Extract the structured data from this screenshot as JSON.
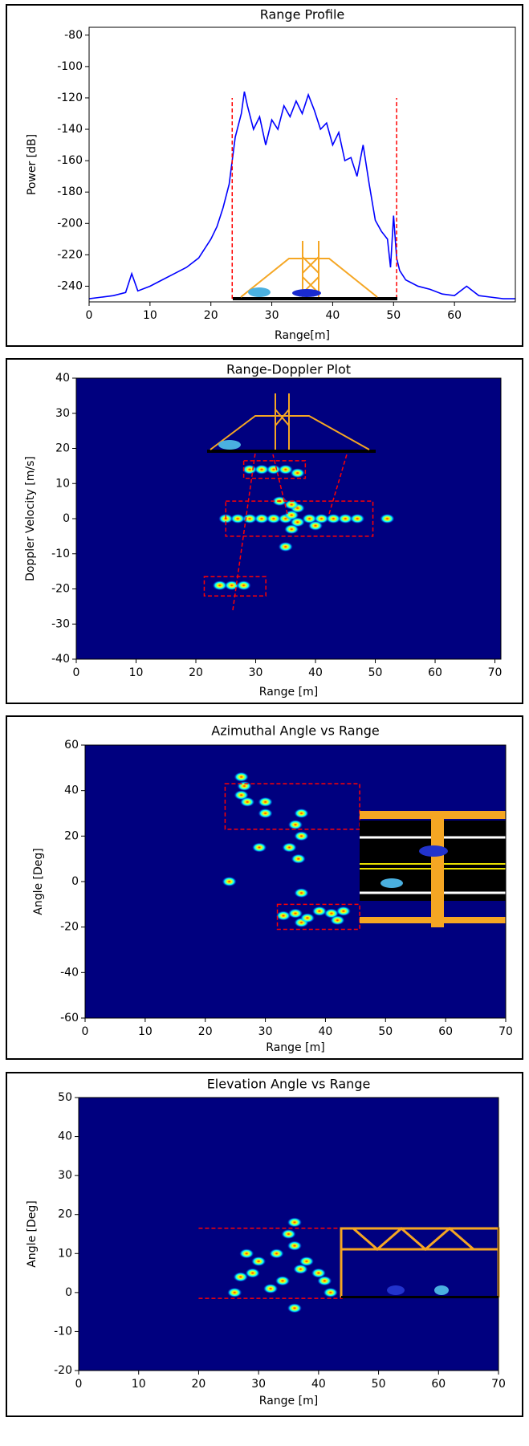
{
  "chart_data": [
    {
      "type": "line",
      "title": "Range Profile",
      "xlabel": "Range[m]",
      "ylabel": "Power [dB]",
      "color": "#0000ff",
      "x": [
        0,
        2,
        4,
        6,
        7,
        8,
        10,
        12,
        14,
        16,
        18,
        20,
        21,
        22,
        23,
        23.5,
        24,
        25,
        25.5,
        26,
        27,
        28,
        29,
        30,
        31,
        32,
        33,
        34,
        35,
        36,
        37,
        38,
        39,
        40,
        41,
        42,
        43,
        44,
        45,
        46,
        47,
        48,
        49,
        49.5,
        50,
        50.5,
        51,
        52,
        54,
        56,
        58,
        60,
        62,
        64,
        66,
        68,
        70
      ],
      "values": [
        -248,
        -247,
        -246,
        -244,
        -232,
        -243,
        -240,
        -236,
        -232,
        -228,
        -222,
        -210,
        -202,
        -190,
        -175,
        -160,
        -145,
        -130,
        -116,
        -125,
        -140,
        -132,
        -150,
        -134,
        -140,
        -125,
        -132,
        -122,
        -130,
        -118,
        -128,
        -140,
        -136,
        -150,
        -142,
        -160,
        -158,
        -170,
        -150,
        -175,
        -198,
        -205,
        -210,
        -228,
        -195,
        -222,
        -230,
        -236,
        -240,
        -242,
        -245,
        -246,
        -240,
        -246,
        -247,
        -248,
        -248
      ],
      "xlim": [
        0,
        70
      ],
      "ylim": [
        -250,
        -75
      ],
      "xticks": [
        0,
        10,
        20,
        30,
        40,
        50,
        60
      ],
      "yticks": [
        -240,
        -220,
        -200,
        -180,
        -160,
        -140,
        -120,
        -100,
        -80
      ],
      "vlines": [
        {
          "x": 23.5,
          "y": [
            -248,
            -120
          ]
        },
        {
          "x": 50.5,
          "y": [
            -248,
            -120
          ]
        }
      ],
      "marker_color": "#ff0000"
    },
    {
      "type": "heatmap",
      "title": "Range-Doppler Plot",
      "xlabel": "Range [m]",
      "ylabel": "Doppler Velocity [m/s]",
      "xlim": [
        0,
        71
      ],
      "ylim": [
        -40,
        40
      ],
      "xticks": [
        0,
        10,
        20,
        30,
        40,
        50,
        60,
        70
      ],
      "yticks": [
        -40,
        -30,
        -20,
        -10,
        0,
        10,
        20,
        30,
        40
      ],
      "points": {
        "x": [
          25,
          27,
          29,
          31,
          33,
          35,
          36,
          37,
          39,
          41,
          43,
          45,
          47,
          29,
          31,
          33,
          35,
          37,
          24,
          26,
          28,
          36,
          35,
          34,
          37,
          40,
          36,
          52
        ],
        "y": [
          0,
          0,
          0,
          0,
          0,
          0,
          1,
          -1,
          0,
          0,
          0,
          0,
          0,
          14,
          14,
          14,
          14,
          13,
          -19,
          -19,
          -19,
          -3,
          -8,
          5,
          3,
          -2,
          4,
          0
        ]
      },
      "boxes": [
        {
          "x": [
            28,
            38.3
          ],
          "y": [
            11.5,
            16.5
          ]
        },
        {
          "x": [
            25,
            49.6
          ],
          "y": [
            -5,
            5
          ]
        },
        {
          "x": [
            21.4,
            31.7
          ],
          "y": [
            -22,
            -16.5
          ]
        }
      ]
    },
    {
      "type": "heatmap",
      "title": "Azimuthal Angle vs Range",
      "xlabel": "Range [m]",
      "ylabel": "Angle [Deg]",
      "xlim": [
        0,
        70
      ],
      "ylim": [
        -60,
        60
      ],
      "xticks": [
        0,
        10,
        20,
        30,
        40,
        50,
        60,
        70
      ],
      "yticks": [
        -60,
        -40,
        -20,
        0,
        20,
        40,
        60
      ],
      "points": {
        "x": [
          26,
          26.5,
          27,
          30,
          30,
          24,
          36,
          36,
          35.5,
          36,
          35,
          34,
          36,
          33,
          35,
          37,
          39,
          41,
          43,
          42,
          29,
          26
        ],
        "y": [
          38,
          42,
          35,
          35,
          30,
          0,
          30,
          20,
          10,
          -5,
          25,
          15,
          -18,
          -15,
          -14,
          -16,
          -13,
          -14,
          -13,
          -17,
          15,
          46
        ]
      },
      "boxes": [
        {
          "x": [
            23.3,
            45.7
          ],
          "y": [
            23,
            43
          ]
        },
        {
          "x": [
            32,
            45.7
          ],
          "y": [
            -21,
            -10
          ]
        }
      ]
    },
    {
      "type": "heatmap",
      "title": "Elevation Angle vs Range",
      "xlabel": "Range [m]",
      "ylabel": "Angle [Deg]",
      "xlim": [
        0,
        70
      ],
      "ylim": [
        -20,
        50
      ],
      "xticks": [
        0,
        10,
        20,
        30,
        40,
        50,
        60,
        70
      ],
      "yticks": [
        -20,
        -10,
        0,
        10,
        20,
        30,
        40,
        50
      ],
      "points": {
        "x": [
          26,
          27,
          29,
          30,
          33,
          35,
          36,
          36,
          37,
          34,
          38,
          41,
          42,
          40,
          36,
          32,
          28
        ],
        "y": [
          0,
          4,
          5,
          8,
          10,
          15,
          12,
          18,
          6,
          3,
          8,
          3,
          0,
          5,
          -4,
          1,
          10
        ]
      },
      "hlines": [
        {
          "y": 16.5,
          "x": [
            20,
            44
          ]
        },
        {
          "y": -1.5,
          "x": [
            20,
            44
          ]
        }
      ]
    }
  ]
}
